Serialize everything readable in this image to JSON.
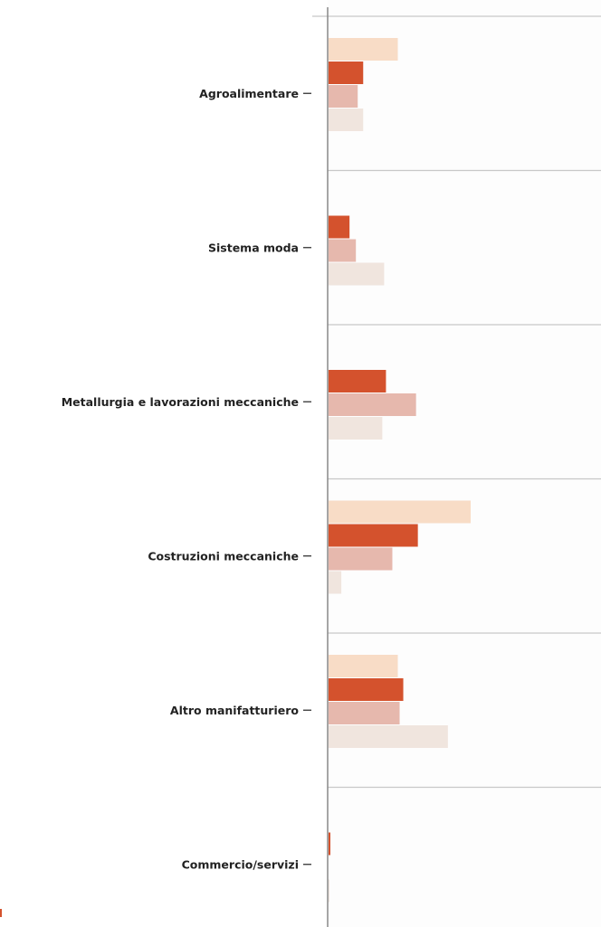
{
  "chart_data": {
    "type": "bar",
    "orientation": "horizontal",
    "title": "",
    "xlabel": "",
    "ylabel": "",
    "categories": [
      "Agroalimentare",
      "Sistema moda",
      "Metallurgia e lavorazioni meccaniche",
      "Costruzioni meccaniche",
      "Altro manifatturiero",
      "Commercio/servizi"
    ],
    "series": [
      {
        "values": [
          76,
          0,
          0,
          156,
          76,
          0
        ],
        "color": "#f8dcc6"
      },
      {
        "values": [
          38,
          23,
          63,
          98,
          82,
          2
        ],
        "color": "#d4522d"
      },
      {
        "values": [
          32,
          30,
          96,
          70,
          78,
          0
        ],
        "color": "#e6b8ad"
      },
      {
        "values": [
          38,
          61,
          59,
          14,
          131,
          1
        ],
        "color": "#f0e5de"
      }
    ],
    "xlim": [
      0,
      300
    ],
    "grid": true,
    "legend": "none"
  }
}
